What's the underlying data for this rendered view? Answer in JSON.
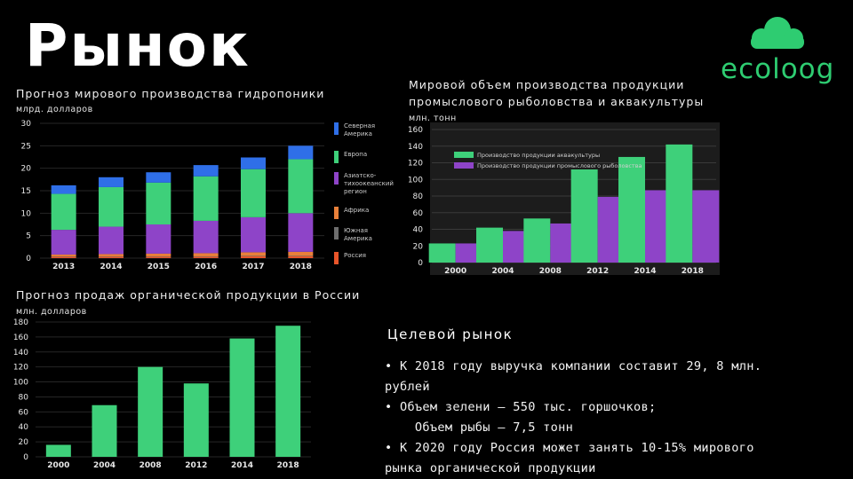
{
  "page": {
    "title": "Рынок"
  },
  "logo": {
    "text": "ecoloog",
    "color": "#2ecc71"
  },
  "charts": {
    "hydro": {
      "title": "Прогноз мирового производства гидропоники",
      "unit": "млрд. долларов"
    },
    "fish": {
      "title_line1": "Мировой объем производства продукции",
      "title_line2": "промыслового рыболовства и аквакультуры",
      "unit": "млн. тонн"
    },
    "organic": {
      "title": "Прогноз продаж органической продукции в России",
      "unit": "млн. долларов"
    }
  },
  "target_market": {
    "title": "Целевой рынок",
    "lines": [
      "• К 2018 году выручка компании составит 29, 8 млн.",
      "рублей",
      "• Объем зелени – 550 тыс. горшочков;",
      "    Объем рыбы – 7,5 тонн",
      "• К 2020 году Россия может занять 10-15% мирового",
      "рынка органической продукции"
    ]
  },
  "chart_data": [
    {
      "type": "bar",
      "stacked": true,
      "categories": [
        "2013",
        "2014",
        "2015",
        "2016",
        "2017",
        "2018"
      ],
      "ylim": [
        0,
        30
      ],
      "yticks": [
        0,
        5,
        10,
        15,
        20,
        25,
        30
      ],
      "grid": true,
      "legend_position": "right",
      "series": [
        {
          "name": "Россия",
          "color": "#e8552a",
          "values": [
            0.3,
            0.3,
            0.3,
            0.3,
            0.4,
            0.4
          ]
        },
        {
          "name": "Южная Америка",
          "color": "#6e6e6e",
          "values": [
            0.1,
            0.1,
            0.1,
            0.1,
            0.1,
            0.1
          ]
        },
        {
          "name": "Африка",
          "color": "#e8803a",
          "values": [
            0.4,
            0.5,
            0.6,
            0.7,
            0.8,
            0.9
          ]
        },
        {
          "name": "Азиатско-тихоокеанский регион",
          "color": "#8e44c8",
          "values": [
            5.5,
            6.1,
            6.5,
            7.2,
            7.8,
            8.6
          ]
        },
        {
          "name": "Европа",
          "color": "#3ed07a",
          "values": [
            8.0,
            8.8,
            9.3,
            9.9,
            10.7,
            12.0
          ]
        },
        {
          "name": "Северная Америка",
          "color": "#2f6fe8",
          "values": [
            1.9,
            2.2,
            2.3,
            2.5,
            2.6,
            3.0
          ]
        }
      ]
    },
    {
      "type": "bar",
      "categories": [
        "2000",
        "2004",
        "2008",
        "2012",
        "2014",
        "2018"
      ],
      "ylim": [
        0,
        160
      ],
      "yticks": [
        0,
        20,
        40,
        60,
        80,
        100,
        120,
        140,
        160
      ],
      "grid": true,
      "legend_position": "top-left",
      "series": [
        {
          "name": "Производство продукции аквакультуры",
          "color": "#3ed07a",
          "values": [
            23,
            42,
            53,
            112,
            127,
            142
          ]
        },
        {
          "name": "Производство продукции промыслового рыболовства",
          "color": "#8e44c8",
          "values": [
            23,
            38,
            47,
            79,
            87,
            87
          ]
        }
      ]
    },
    {
      "type": "bar",
      "categories": [
        "2000",
        "2004",
        "2008",
        "2012",
        "2014",
        "2018"
      ],
      "ylim": [
        0,
        180
      ],
      "yticks": [
        0,
        20,
        40,
        60,
        80,
        100,
        120,
        140,
        160,
        180
      ],
      "grid": true,
      "series": [
        {
          "color": "#3ed07a",
          "values": [
            16,
            69,
            120,
            98,
            158,
            175
          ]
        }
      ]
    }
  ]
}
